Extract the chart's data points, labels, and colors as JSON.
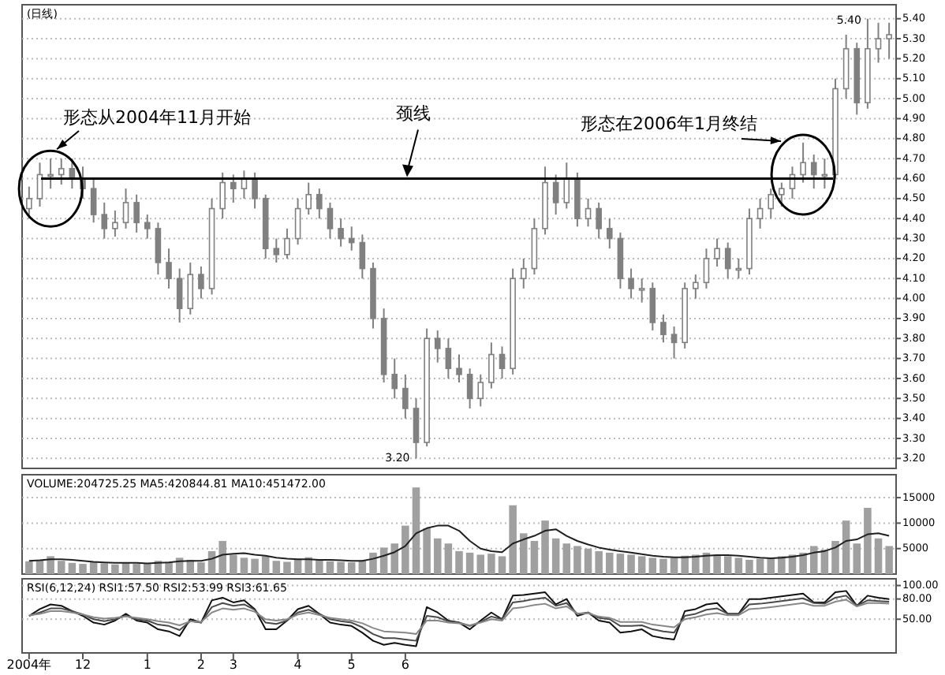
{
  "chart_data": [
    {
      "type": "candlestick",
      "title": "(日线)",
      "color": "#808080",
      "categories": [
        null,
        null,
        null,
        null,
        null,
        null,
        null,
        null,
        null,
        null,
        null,
        null,
        null,
        null,
        null,
        null,
        null,
        null,
        null,
        null,
        null,
        null,
        null,
        null,
        null,
        null,
        null,
        null,
        null,
        null,
        null,
        null,
        null,
        null,
        null,
        null,
        null,
        null,
        null,
        null,
        null,
        null,
        null,
        null,
        null,
        null,
        null,
        null,
        null,
        null,
        null,
        null,
        null,
        null,
        null,
        null,
        null,
        null,
        null,
        null,
        null,
        null,
        null,
        null,
        null,
        null,
        null,
        null,
        null,
        null,
        null,
        null,
        null,
        null,
        null,
        null,
        null,
        null,
        null,
        null,
        null
      ],
      "ohlc": [
        [
          4.45,
          4.56,
          4.4,
          4.5
        ],
        [
          4.5,
          4.68,
          4.46,
          4.62
        ],
        [
          4.62,
          4.7,
          4.55,
          4.62
        ],
        [
          4.62,
          4.7,
          4.57,
          4.65
        ],
        [
          4.65,
          4.7,
          4.55,
          4.6
        ],
        [
          4.6,
          4.66,
          4.5,
          4.55
        ],
        [
          4.55,
          4.6,
          4.38,
          4.42
        ],
        [
          4.42,
          4.48,
          4.3,
          4.35
        ],
        [
          4.35,
          4.44,
          4.31,
          4.38
        ],
        [
          4.38,
          4.55,
          4.35,
          4.48
        ],
        [
          4.48,
          4.52,
          4.33,
          4.38
        ],
        [
          4.38,
          4.42,
          4.3,
          4.35
        ],
        [
          4.35,
          4.38,
          4.12,
          4.18
        ],
        [
          4.18,
          4.25,
          4.05,
          4.1
        ],
        [
          4.1,
          4.15,
          3.88,
          3.95
        ],
        [
          3.95,
          4.18,
          3.92,
          4.12
        ],
        [
          4.12,
          4.16,
          4.0,
          4.05
        ],
        [
          4.05,
          4.5,
          4.02,
          4.45
        ],
        [
          4.45,
          4.63,
          4.4,
          4.58
        ],
        [
          4.58,
          4.62,
          4.48,
          4.55
        ],
        [
          4.55,
          4.64,
          4.5,
          4.6
        ],
        [
          4.6,
          4.63,
          4.45,
          4.5
        ],
        [
          4.5,
          4.52,
          4.2,
          4.25
        ],
        [
          4.25,
          4.3,
          4.18,
          4.22
        ],
        [
          4.22,
          4.35,
          4.2,
          4.3
        ],
        [
          4.3,
          4.5,
          4.27,
          4.45
        ],
        [
          4.45,
          4.58,
          4.42,
          4.52
        ],
        [
          4.52,
          4.55,
          4.4,
          4.45
        ],
        [
          4.45,
          4.48,
          4.3,
          4.35
        ],
        [
          4.35,
          4.4,
          4.26,
          4.3
        ],
        [
          4.3,
          4.36,
          4.24,
          4.28
        ],
        [
          4.28,
          4.32,
          4.1,
          4.15
        ],
        [
          4.15,
          4.18,
          3.85,
          3.9
        ],
        [
          3.9,
          3.95,
          3.58,
          3.62
        ],
        [
          3.62,
          3.7,
          3.5,
          3.55
        ],
        [
          3.55,
          3.62,
          3.4,
          3.45
        ],
        [
          3.45,
          3.5,
          3.2,
          3.28
        ],
        [
          3.28,
          3.85,
          3.26,
          3.8
        ],
        [
          3.8,
          3.84,
          3.68,
          3.75
        ],
        [
          3.75,
          3.8,
          3.6,
          3.65
        ],
        [
          3.65,
          3.72,
          3.58,
          3.62
        ],
        [
          3.62,
          3.65,
          3.45,
          3.5
        ],
        [
          3.5,
          3.62,
          3.46,
          3.58
        ],
        [
          3.58,
          3.78,
          3.55,
          3.72
        ],
        [
          3.72,
          3.76,
          3.6,
          3.65
        ],
        [
          3.65,
          4.15,
          3.62,
          4.1
        ],
        [
          4.1,
          4.2,
          4.05,
          4.15
        ],
        [
          4.15,
          4.4,
          4.12,
          4.35
        ],
        [
          4.35,
          4.66,
          4.32,
          4.58
        ],
        [
          4.58,
          4.62,
          4.42,
          4.48
        ],
        [
          4.48,
          4.68,
          4.45,
          4.6
        ],
        [
          4.6,
          4.63,
          4.36,
          4.4
        ],
        [
          4.4,
          4.5,
          4.36,
          4.45
        ],
        [
          4.45,
          4.48,
          4.3,
          4.35
        ],
        [
          4.35,
          4.4,
          4.25,
          4.3
        ],
        [
          4.3,
          4.33,
          4.05,
          4.1
        ],
        [
          4.1,
          4.15,
          4.0,
          4.05
        ],
        [
          4.05,
          4.1,
          3.98,
          4.05
        ],
        [
          4.05,
          4.08,
          3.84,
          3.88
        ],
        [
          3.88,
          3.92,
          3.78,
          3.82
        ],
        [
          3.82,
          3.86,
          3.7,
          3.78
        ],
        [
          3.78,
          4.08,
          3.75,
          4.05
        ],
        [
          4.05,
          4.12,
          4.0,
          4.08
        ],
        [
          4.08,
          4.25,
          4.05,
          4.2
        ],
        [
          4.2,
          4.3,
          4.16,
          4.25
        ],
        [
          4.25,
          4.28,
          4.1,
          4.15
        ],
        [
          4.15,
          4.2,
          4.1,
          4.15
        ],
        [
          4.15,
          4.45,
          4.12,
          4.4
        ],
        [
          4.4,
          4.5,
          4.35,
          4.45
        ],
        [
          4.45,
          4.55,
          4.4,
          4.52
        ],
        [
          4.52,
          4.58,
          4.46,
          4.55
        ],
        [
          4.55,
          4.66,
          4.5,
          4.62
        ],
        [
          4.62,
          4.78,
          4.58,
          4.68
        ],
        [
          4.68,
          4.72,
          4.55,
          4.62
        ],
        [
          4.62,
          4.7,
          4.55,
          4.62
        ],
        [
          4.62,
          5.1,
          4.6,
          5.05
        ],
        [
          5.05,
          5.32,
          5.0,
          5.25
        ],
        [
          5.25,
          5.28,
          4.92,
          4.98
        ],
        [
          4.98,
          5.4,
          4.95,
          5.25
        ],
        [
          5.25,
          5.38,
          5.18,
          5.3
        ],
        [
          5.3,
          5.38,
          5.2,
          5.32
        ]
      ],
      "ylim": [
        3.15,
        5.47
      ],
      "yticks": [
        {
          "value": 3.2,
          "label": "3.20"
        },
        {
          "value": 3.3,
          "label": "3.30"
        },
        {
          "value": 3.4,
          "label": "3.40"
        },
        {
          "value": 3.5,
          "label": "3.50"
        },
        {
          "value": 3.6,
          "label": "3.60"
        },
        {
          "value": 3.7,
          "label": "3.70"
        },
        {
          "value": 3.8,
          "label": "3.80"
        },
        {
          "value": 3.9,
          "label": "3.90"
        },
        {
          "value": 4.0,
          "label": "4.00"
        },
        {
          "value": 4.1,
          "label": "4.10"
        },
        {
          "value": 4.2,
          "label": "4.20"
        },
        {
          "value": 4.3,
          "label": "4.30"
        },
        {
          "value": 4.4,
          "label": "4.40"
        },
        {
          "value": 4.5,
          "label": "4.50"
        },
        {
          "value": 4.6,
          "label": "4.60"
        },
        {
          "value": 4.7,
          "label": "4.70"
        },
        {
          "value": 4.8,
          "label": "4.80"
        },
        {
          "value": 4.9,
          "label": "4.90"
        },
        {
          "value": 5.0,
          "label": "5.00"
        },
        {
          "value": 5.1,
          "label": "5.10"
        },
        {
          "value": 5.2,
          "label": "5.20"
        },
        {
          "value": 5.3,
          "label": "5.30"
        },
        {
          "value": 5.4,
          "label": "5.40"
        }
      ],
      "grid": "y",
      "tick_labels": "y",
      "ref_lines": [
        {
          "axis": "y",
          "value": 4.6,
          "label": "颈线",
          "color": "#000000"
        }
      ],
      "annotations": [
        "形态从2004年11月开始",
        "形态在2006年1月终结",
        "3.20",
        "5.40"
      ]
    },
    {
      "type": "bar",
      "title": "VOLUME:204725.25 MA5:420844.81 MA10:451472.00",
      "categories": [
        null,
        null,
        null,
        null,
        null,
        null,
        null,
        null,
        null,
        null,
        null,
        null,
        null,
        null,
        null,
        null,
        null,
        null,
        null,
        null,
        null,
        null,
        null,
        null,
        null,
        null,
        null,
        null,
        null,
        null,
        null,
        null,
        null,
        null,
        null,
        null,
        null,
        null,
        null,
        null,
        null,
        null,
        null,
        null,
        null,
        null,
        null,
        null,
        null,
        null,
        null,
        null,
        null,
        null,
        null,
        null,
        null,
        null,
        null,
        null,
        null,
        null,
        null,
        null,
        null,
        null,
        null,
        null,
        null,
        null,
        null,
        null,
        null,
        null,
        null,
        null,
        null,
        null,
        null,
        null,
        null
      ],
      "series": [
        {
          "color": "#a0a0a0",
          "values": [
            2500,
            2800,
            3500,
            2600,
            2200,
            2000,
            2400,
            2100,
            1900,
            2300,
            2000,
            2100,
            2600,
            2400,
            3200,
            2800,
            2300,
            4500,
            6500,
            3800,
            3200,
            3000,
            3500,
            2600,
            2400,
            3000,
            3300,
            2800,
            2500,
            2400,
            2300,
            2700,
            4200,
            5200,
            6000,
            9500,
            17000,
            9000,
            7000,
            6000,
            4500,
            4200,
            3800,
            4000,
            3500,
            13500,
            8000,
            6500,
            10500,
            7000,
            6000,
            5500,
            5000,
            4500,
            4200,
            4000,
            3800,
            3500,
            3200,
            3000,
            3200,
            3600,
            3800,
            4200,
            3800,
            3500,
            3200,
            2800,
            3000,
            3200,
            3500,
            3800,
            4200,
            5500,
            4800,
            6500,
            10500,
            6000,
            13000,
            7000,
            5500
          ]
        },
        {
          "type": "line",
          "color": "#202020",
          "values": [
            2600,
            2700,
            2900,
            2900,
            2800,
            2600,
            2400,
            2300,
            2200,
            2200,
            2200,
            2100,
            2200,
            2300,
            2500,
            2600,
            2600,
            3000,
            3800,
            4000,
            4100,
            3800,
            3600,
            3200,
            3000,
            2900,
            2900,
            2800,
            2800,
            2700,
            2600,
            2600,
            3000,
            3600,
            4300,
            5500,
            8000,
            9000,
            9500,
            9500,
            8500,
            6500,
            5000,
            4500,
            4300,
            6000,
            6800,
            7500,
            8500,
            8800,
            7500,
            6500,
            5800,
            5200,
            4800,
            4500,
            4200,
            3900,
            3600,
            3400,
            3300,
            3300,
            3400,
            3600,
            3700,
            3700,
            3600,
            3400,
            3200,
            3100,
            3200,
            3400,
            3700,
            4200,
            4500,
            5200,
            6500,
            6800,
            7800,
            8000,
            7500
          ]
        }
      ],
      "ylim": [
        0,
        19500
      ],
      "yticks": [
        5000,
        10000,
        15000
      ],
      "grid": "y",
      "tick_labels": "y"
    },
    {
      "type": "line",
      "title": "RSI(6,12,24) RSI1:57.50 RSI2:53.99 RSI3:61.65",
      "categories": [
        "2004年",
        null,
        null,
        null,
        null,
        "12",
        null,
        null,
        null,
        null,
        null,
        "1",
        null,
        null,
        null,
        null,
        "2",
        null,
        null,
        "3",
        null,
        null,
        null,
        null,
        null,
        "4",
        null,
        null,
        null,
        null,
        "5",
        null,
        null,
        null,
        null,
        "6",
        null,
        null,
        null,
        null,
        null,
        null,
        null,
        null,
        null,
        null,
        null,
        null,
        null,
        null,
        null,
        null,
        null,
        null,
        null,
        null,
        null,
        null,
        null,
        null,
        null,
        null,
        null,
        null,
        null,
        null,
        null,
        null,
        null,
        null,
        null,
        null,
        null,
        null,
        null,
        null,
        null,
        null,
        null,
        null,
        null
      ],
      "series": [
        {
          "color": "#111111",
          "values": [
            55,
            65,
            72,
            70,
            62,
            55,
            45,
            42,
            48,
            58,
            48,
            45,
            35,
            32,
            25,
            50,
            45,
            78,
            82,
            75,
            78,
            65,
            35,
            35,
            48,
            65,
            70,
            58,
            45,
            42,
            40,
            30,
            18,
            12,
            15,
            12,
            10,
            68,
            60,
            48,
            45,
            35,
            48,
            60,
            50,
            85,
            86,
            88,
            90,
            72,
            80,
            55,
            60,
            48,
            45,
            30,
            32,
            35,
            25,
            22,
            20,
            62,
            65,
            72,
            74,
            58,
            58,
            80,
            80,
            82,
            84,
            86,
            88,
            75,
            75,
            90,
            92,
            70,
            85,
            82,
            80
          ]
        },
        {
          "color": "#4a4a4a",
          "values": [
            55,
            60,
            66,
            66,
            62,
            57,
            50,
            47,
            50,
            55,
            50,
            48,
            42,
            40,
            34,
            47,
            45,
            68,
            74,
            70,
            72,
            64,
            45,
            43,
            48,
            60,
            64,
            58,
            50,
            47,
            45,
            38,
            28,
            22,
            22,
            20,
            18,
            55,
            53,
            47,
            45,
            40,
            46,
            54,
            50,
            75,
            77,
            80,
            82,
            70,
            74,
            58,
            60,
            52,
            50,
            40,
            40,
            41,
            35,
            32,
            30,
            55,
            58,
            64,
            66,
            58,
            58,
            72,
            73,
            75,
            77,
            79,
            81,
            74,
            73,
            82,
            85,
            70,
            78,
            77,
            76
          ]
        },
        {
          "color": "#888888",
          "values": [
            56,
            58,
            62,
            62,
            60,
            57,
            53,
            51,
            52,
            54,
            52,
            50,
            47,
            45,
            41,
            47,
            46,
            60,
            66,
            64,
            66,
            61,
            50,
            48,
            50,
            57,
            60,
            56,
            52,
            50,
            48,
            44,
            37,
            32,
            31,
            30,
            28,
            48,
            48,
            45,
            44,
            41,
            45,
            50,
            48,
            66,
            68,
            71,
            73,
            66,
            69,
            58,
            59,
            54,
            52,
            46,
            46,
            46,
            42,
            40,
            38,
            50,
            53,
            57,
            59,
            56,
            56,
            65,
            66,
            68,
            70,
            72,
            74,
            70,
            70,
            76,
            79,
            69,
            74,
            74,
            73
          ]
        }
      ],
      "ylim": [
        0,
        110
      ],
      "yticks": [
        {
          "value": 50,
          "label": "50.00"
        },
        {
          "value": 80,
          "label": "80.00"
        },
        {
          "value": 100,
          "label": "100.00"
        }
      ],
      "grid": "y"
    }
  ]
}
